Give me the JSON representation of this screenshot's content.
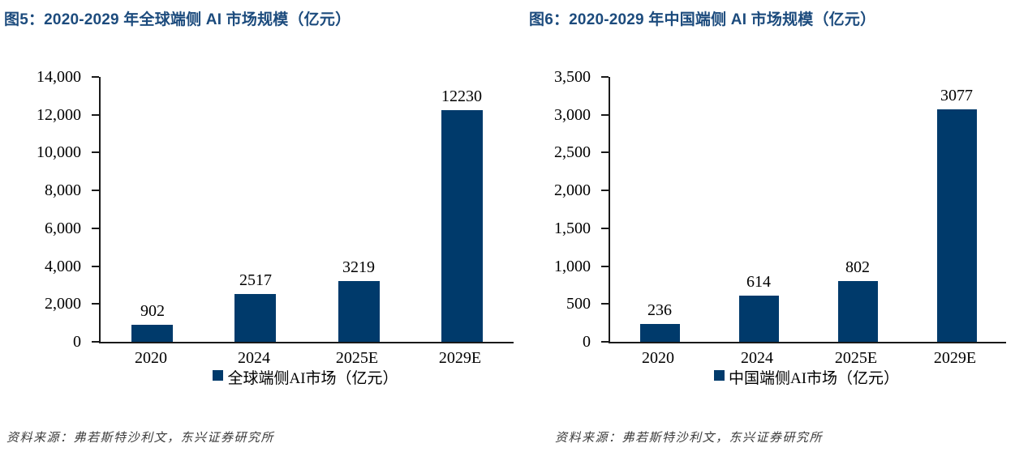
{
  "page": {
    "background": "#ffffff"
  },
  "colors": {
    "title": "#1c4b7d",
    "bar": "#003a6b",
    "axis": "#1a1a1a",
    "text": "#000000",
    "source": "#3b3b3b"
  },
  "chart_data": [
    {
      "type": "bar",
      "figure_label": "图5",
      "title": "图5：2020-2029 年全球端侧 AI 市场规模（亿元）",
      "categories": [
        "2020",
        "2024",
        "2025E",
        "2029E"
      ],
      "values": [
        902,
        2517,
        3219,
        12230
      ],
      "value_labels": [
        "902",
        "2517",
        "3219",
        "12230"
      ],
      "ylabel": "",
      "xlabel": "",
      "ylim": [
        0,
        14000
      ],
      "ytick_interval": 2000,
      "ytick_labels": [
        "0",
        "2,000",
        "4,000",
        "6,000",
        "8,000",
        "10,000",
        "12,000",
        "14,000"
      ],
      "grid": false,
      "legend_position": "bottom",
      "legend": "全球端侧AI市场（亿元）",
      "source": "资料来源：弗若斯特沙利文，东兴证券研究所"
    },
    {
      "type": "bar",
      "figure_label": "图6",
      "title": "图6：2020-2029 年中国端侧 AI 市场规模（亿元）",
      "categories": [
        "2020",
        "2024",
        "2025E",
        "2029E"
      ],
      "values": [
        236,
        614,
        802,
        3077
      ],
      "value_labels": [
        "236",
        "614",
        "802",
        "3077"
      ],
      "ylabel": "",
      "xlabel": "",
      "ylim": [
        0,
        3500
      ],
      "ytick_interval": 500,
      "ytick_labels": [
        "0",
        "500",
        "1,000",
        "1,500",
        "2,000",
        "2,500",
        "3,000",
        "3,500"
      ],
      "grid": false,
      "legend_position": "bottom",
      "legend": "中国端侧AI市场（亿元）",
      "source": "资料来源：弗若斯特沙利文，东兴证券研究所"
    }
  ]
}
